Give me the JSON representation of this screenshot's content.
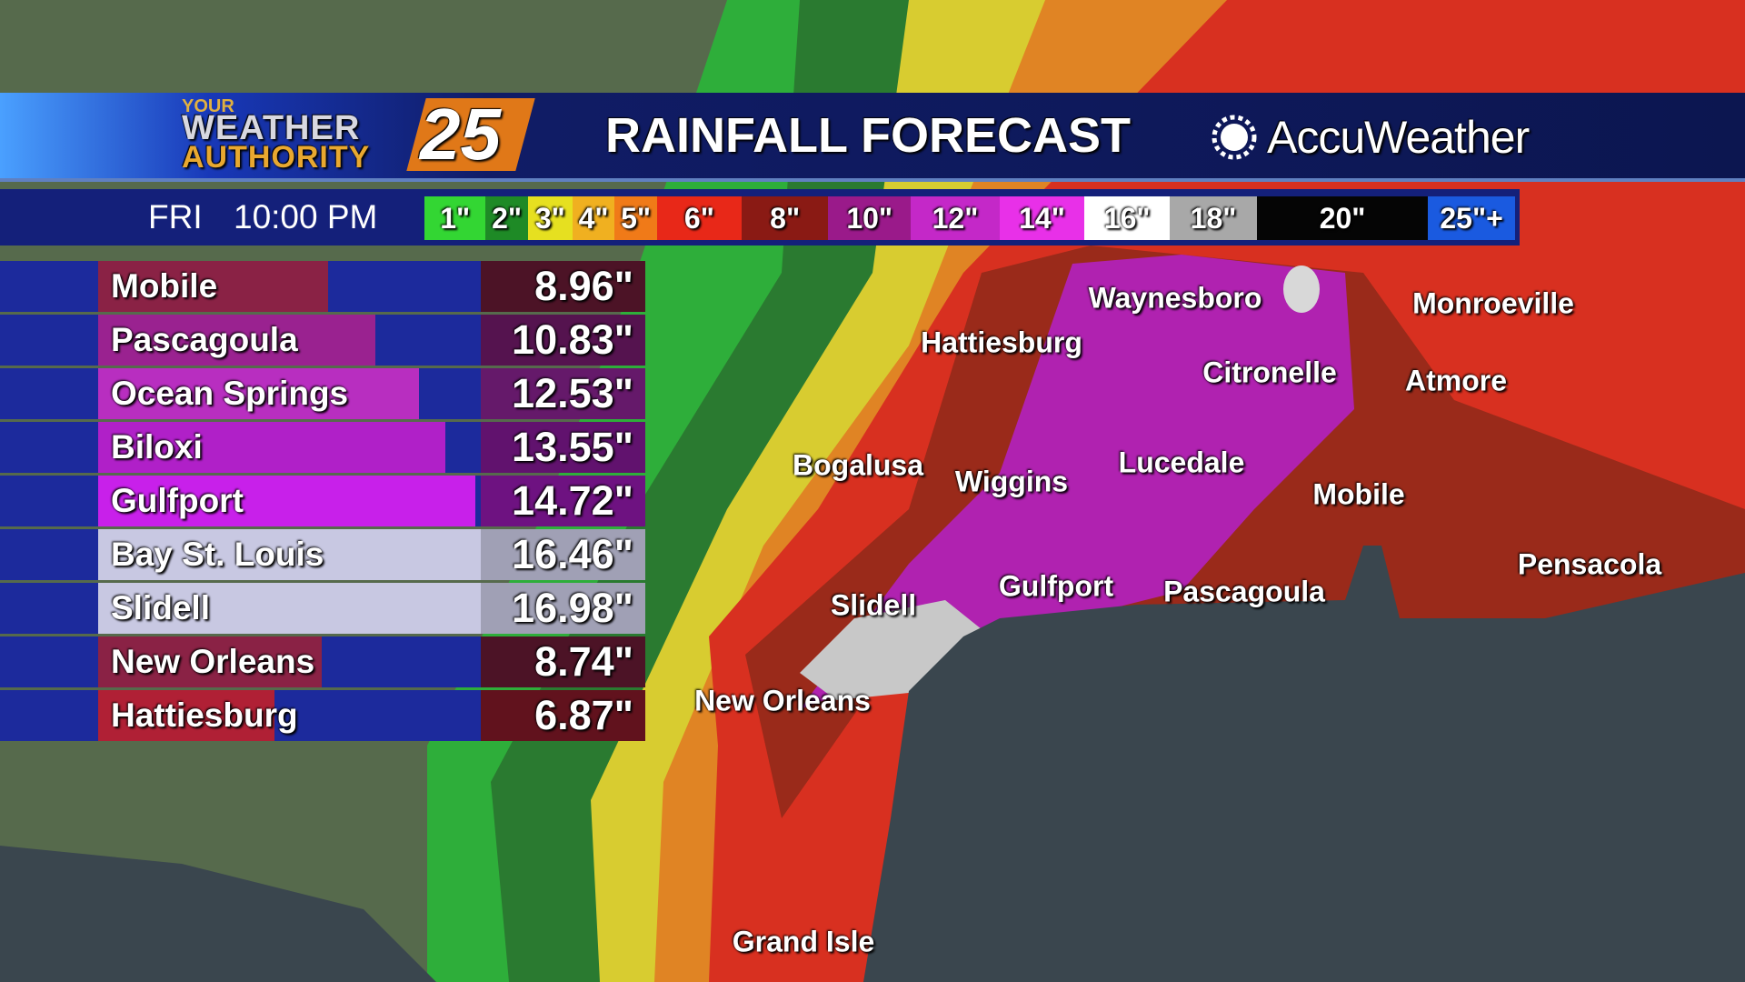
{
  "header": {
    "logo": {
      "top": "YOUR",
      "middle": "WEATHER",
      "bottom": "AUTHORITY",
      "number": "25"
    },
    "title": "RAINFALL FORECAST",
    "brand": "AccuWeather"
  },
  "time_bar": {
    "day": "FRI",
    "time": "10:00 PM"
  },
  "legend": [
    {
      "label": "1\"",
      "color": "#33d633"
    },
    {
      "label": "2\"",
      "color": "#1e8a26"
    },
    {
      "label": "3\"",
      "color": "#e6e020"
    },
    {
      "label": "4\"",
      "color": "#f0b020"
    },
    {
      "label": "5\"",
      "color": "#f07a18"
    },
    {
      "label": "6\"",
      "color": "#e82818"
    },
    {
      "label": "8\"",
      "color": "#8a1a14"
    },
    {
      "label": "10\"",
      "color": "#9a1a8a"
    },
    {
      "label": "12\"",
      "color": "#c428c8"
    },
    {
      "label": "14\"",
      "color": "#e830e8"
    },
    {
      "label": "16\"",
      "color": "#ffffff"
    },
    {
      "label": "18\"",
      "color": "#a8a8a8"
    },
    {
      "label": "20\"",
      "color": "#050505"
    },
    {
      "label": "25\"+",
      "color": "#1a5ae0"
    }
  ],
  "table": {
    "rows": [
      {
        "name": "Mobile",
        "value": 8.96,
        "value_label": "8.96\"",
        "color": "#8a2245"
      },
      {
        "name": "Pascagoula",
        "value": 10.83,
        "value_label": "10.83\"",
        "color": "#9a2290"
      },
      {
        "name": "Ocean Springs",
        "value": 12.53,
        "value_label": "12.53\"",
        "color": "#b82ec0"
      },
      {
        "name": "Biloxi",
        "value": 13.55,
        "value_label": "13.55\"",
        "color": "#b020c8"
      },
      {
        "name": "Gulfport",
        "value": 14.72,
        "value_label": "14.72\"",
        "color": "#c820ea"
      },
      {
        "name": "Bay St. Louis",
        "value": 16.46,
        "value_label": "16.46\"",
        "color": "#c8c8e2"
      },
      {
        "name": "Slidell",
        "value": 16.98,
        "value_label": "16.98\"",
        "color": "#c8c8e2"
      },
      {
        "name": "New Orleans",
        "value": 8.74,
        "value_label": "8.74\"",
        "color": "#8a2245"
      },
      {
        "name": "Hattiesburg",
        "value": 6.87,
        "value_label": "6.87\"",
        "color": "#b02035"
      }
    ]
  },
  "map_labels": [
    "Waynesboro",
    "Monroeville",
    "Hattiesburg",
    "Citronelle",
    "Atmore",
    "Bogalusa",
    "Wiggins",
    "Lucedale",
    "Mobile",
    "Pensacola",
    "Gulfport",
    "Pascagoula",
    "Slidell",
    "New Orleans",
    "Grand Isle"
  ]
}
